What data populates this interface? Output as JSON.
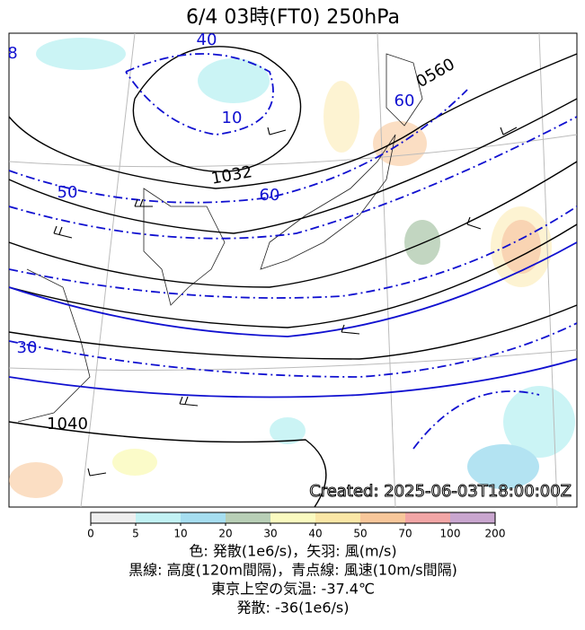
{
  "header": {
    "title": "6/4  03時(FT0)     250hPa"
  },
  "map": {
    "created": "Created: 2025-06-03T18:00:00Z",
    "contour_labels": [
      "40",
      "10",
      "1032",
      "0560",
      "60",
      "50",
      "60",
      "30",
      "1040",
      "8"
    ]
  },
  "colorbar": {
    "ticks": [
      0,
      5,
      10,
      20,
      30,
      40,
      50,
      70,
      100,
      200
    ],
    "colors": [
      "#efefef",
      "#c2f2f4",
      "#a6def0",
      "#b8cfb6",
      "#fbfbc0",
      "#fbe7a6",
      "#f8c79a",
      "#f2a6a6",
      "#c9a6cf"
    ]
  },
  "caption": [
    "色: 発散(1e6/s)，矢羽: 風(m/s)",
    "黒線: 高度(120m間隔)，青点線: 風速(10m/s間隔)",
    "東京上空の気温: -37.4℃",
    "発散: -36(1e6/s)"
  ]
}
